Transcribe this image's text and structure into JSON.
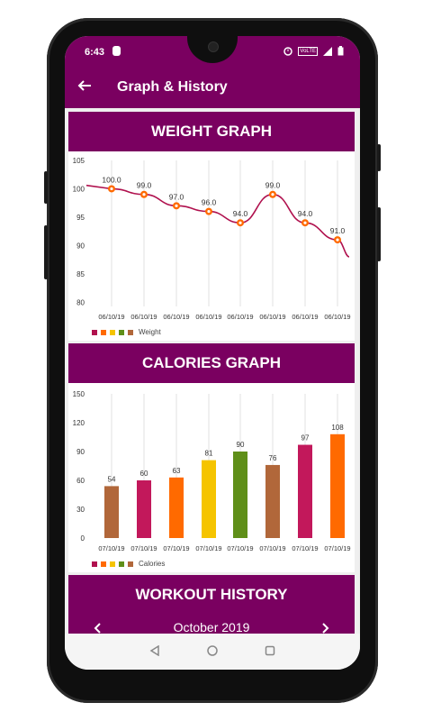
{
  "status_bar": {
    "time": "6:43",
    "network": "VoLTE"
  },
  "app_bar": {
    "title": "Graph & History",
    "back_icon": "arrow-left-icon"
  },
  "weight_section": {
    "title": "WEIGHT GRAPH",
    "legend_label": "Weight"
  },
  "calories_section": {
    "title": "CALORIES GRAPH",
    "legend_label": "Calories"
  },
  "workout_section": {
    "title": "WORKOUT HISTORY",
    "month_label": "October 2019"
  },
  "legend_colors": [
    "#b0114e",
    "#ff6a00",
    "#f5c400",
    "#5f8f19",
    "#b1673a"
  ],
  "chart_data": [
    {
      "type": "line",
      "categories": [
        "06/10/19",
        "06/10/19",
        "06/10/19",
        "06/10/19",
        "06/10/19",
        "06/10/19",
        "06/10/19",
        "06/10/19"
      ],
      "series": [
        {
          "name": "Weight",
          "values": [
            100.0,
            99.0,
            97.0,
            96.0,
            94.0,
            99.0,
            94.0,
            91.0
          ],
          "color": "#b0114e"
        }
      ],
      "ylim": [
        77.5,
        105
      ],
      "yticks": [
        80,
        85,
        90,
        95,
        100,
        105
      ],
      "data_labels": [
        "100.0",
        "99.0",
        "97.0",
        "96.0",
        "94.0",
        "99.0",
        "94.0",
        "91.0"
      ],
      "grid": "vertical",
      "legend": "bottom-left"
    },
    {
      "type": "bar",
      "categories": [
        "07/10/19",
        "07/10/19",
        "07/10/19",
        "07/10/19",
        "07/10/19",
        "07/10/19",
        "07/10/19",
        "07/10/19"
      ],
      "series": [
        {
          "name": "Calories",
          "values": [
            54,
            60,
            63,
            81,
            90,
            76,
            97,
            108
          ]
        }
      ],
      "bar_colors": [
        "#b1673a",
        "#c2185b",
        "#ff6a00",
        "#f5c400",
        "#5f8f19",
        "#b1673a",
        "#c2185b",
        "#ff6a00"
      ],
      "ylim": [
        0,
        150
      ],
      "yticks": [
        0,
        30,
        60,
        90,
        120,
        150
      ],
      "grid": "vertical",
      "legend": "bottom-left"
    }
  ]
}
